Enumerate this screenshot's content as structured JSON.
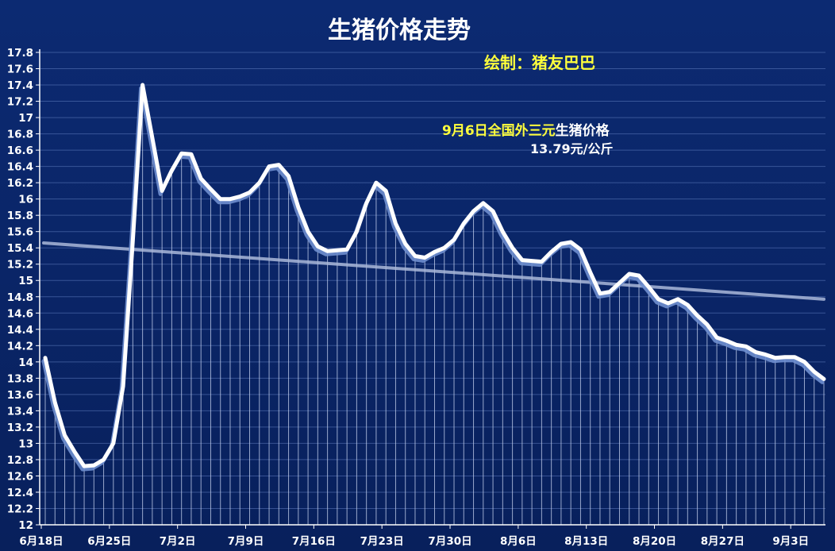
{
  "chart_data": {
    "type": "line",
    "title": "生猪价格走势",
    "credit": "绘制：猪友巴巴",
    "annotation": {
      "date_highlight": "9月6日全国外三元",
      "label": "生猪价格",
      "value_text": "13.79元/公斤"
    },
    "xlabel": "",
    "ylabel": "",
    "ylim": [
      12,
      17.8
    ],
    "ytick_step": 0.2,
    "x_ticks": [
      "6月18日",
      "6月25日",
      "7月2日",
      "7月9日",
      "7月16日",
      "7月23日",
      "7月30日",
      "8月6日",
      "8月13日",
      "8月20日",
      "8月27日",
      "9月3日"
    ],
    "grid": true,
    "legend": "none",
    "trendline": {
      "start": 15.46,
      "end": 14.77
    },
    "colors": {
      "background": "#0a2466",
      "line": "#ffffff",
      "shadow": "#6f8fcf",
      "trend": "#aab9d9",
      "title_accent": "#ffff3c"
    },
    "series": [
      {
        "values": [
          14.05,
          13.5,
          13.1,
          12.9,
          12.72,
          12.73,
          12.8,
          13.0,
          13.7,
          15.5,
          17.4,
          16.75,
          16.1,
          16.35,
          16.56,
          16.55,
          16.25,
          16.12,
          16.0,
          16.0,
          16.03,
          16.08,
          16.2,
          16.4,
          16.42,
          16.28,
          15.9,
          15.6,
          15.42,
          15.36,
          15.37,
          15.38,
          15.6,
          15.95,
          16.2,
          16.1,
          15.7,
          15.45,
          15.3,
          15.28,
          15.35,
          15.4,
          15.5,
          15.7,
          15.85,
          15.95,
          15.85,
          15.6,
          15.4,
          15.25,
          15.24,
          15.23,
          15.35,
          15.45,
          15.47,
          15.38,
          15.1,
          14.84,
          14.86,
          14.97,
          15.08,
          15.06,
          14.92,
          14.77,
          14.72,
          14.77,
          14.7,
          14.57,
          14.46,
          14.3,
          14.26,
          14.21,
          14.19,
          14.12,
          14.09,
          14.05,
          14.06,
          14.06,
          14.0,
          13.88,
          13.79
        ]
      }
    ]
  }
}
